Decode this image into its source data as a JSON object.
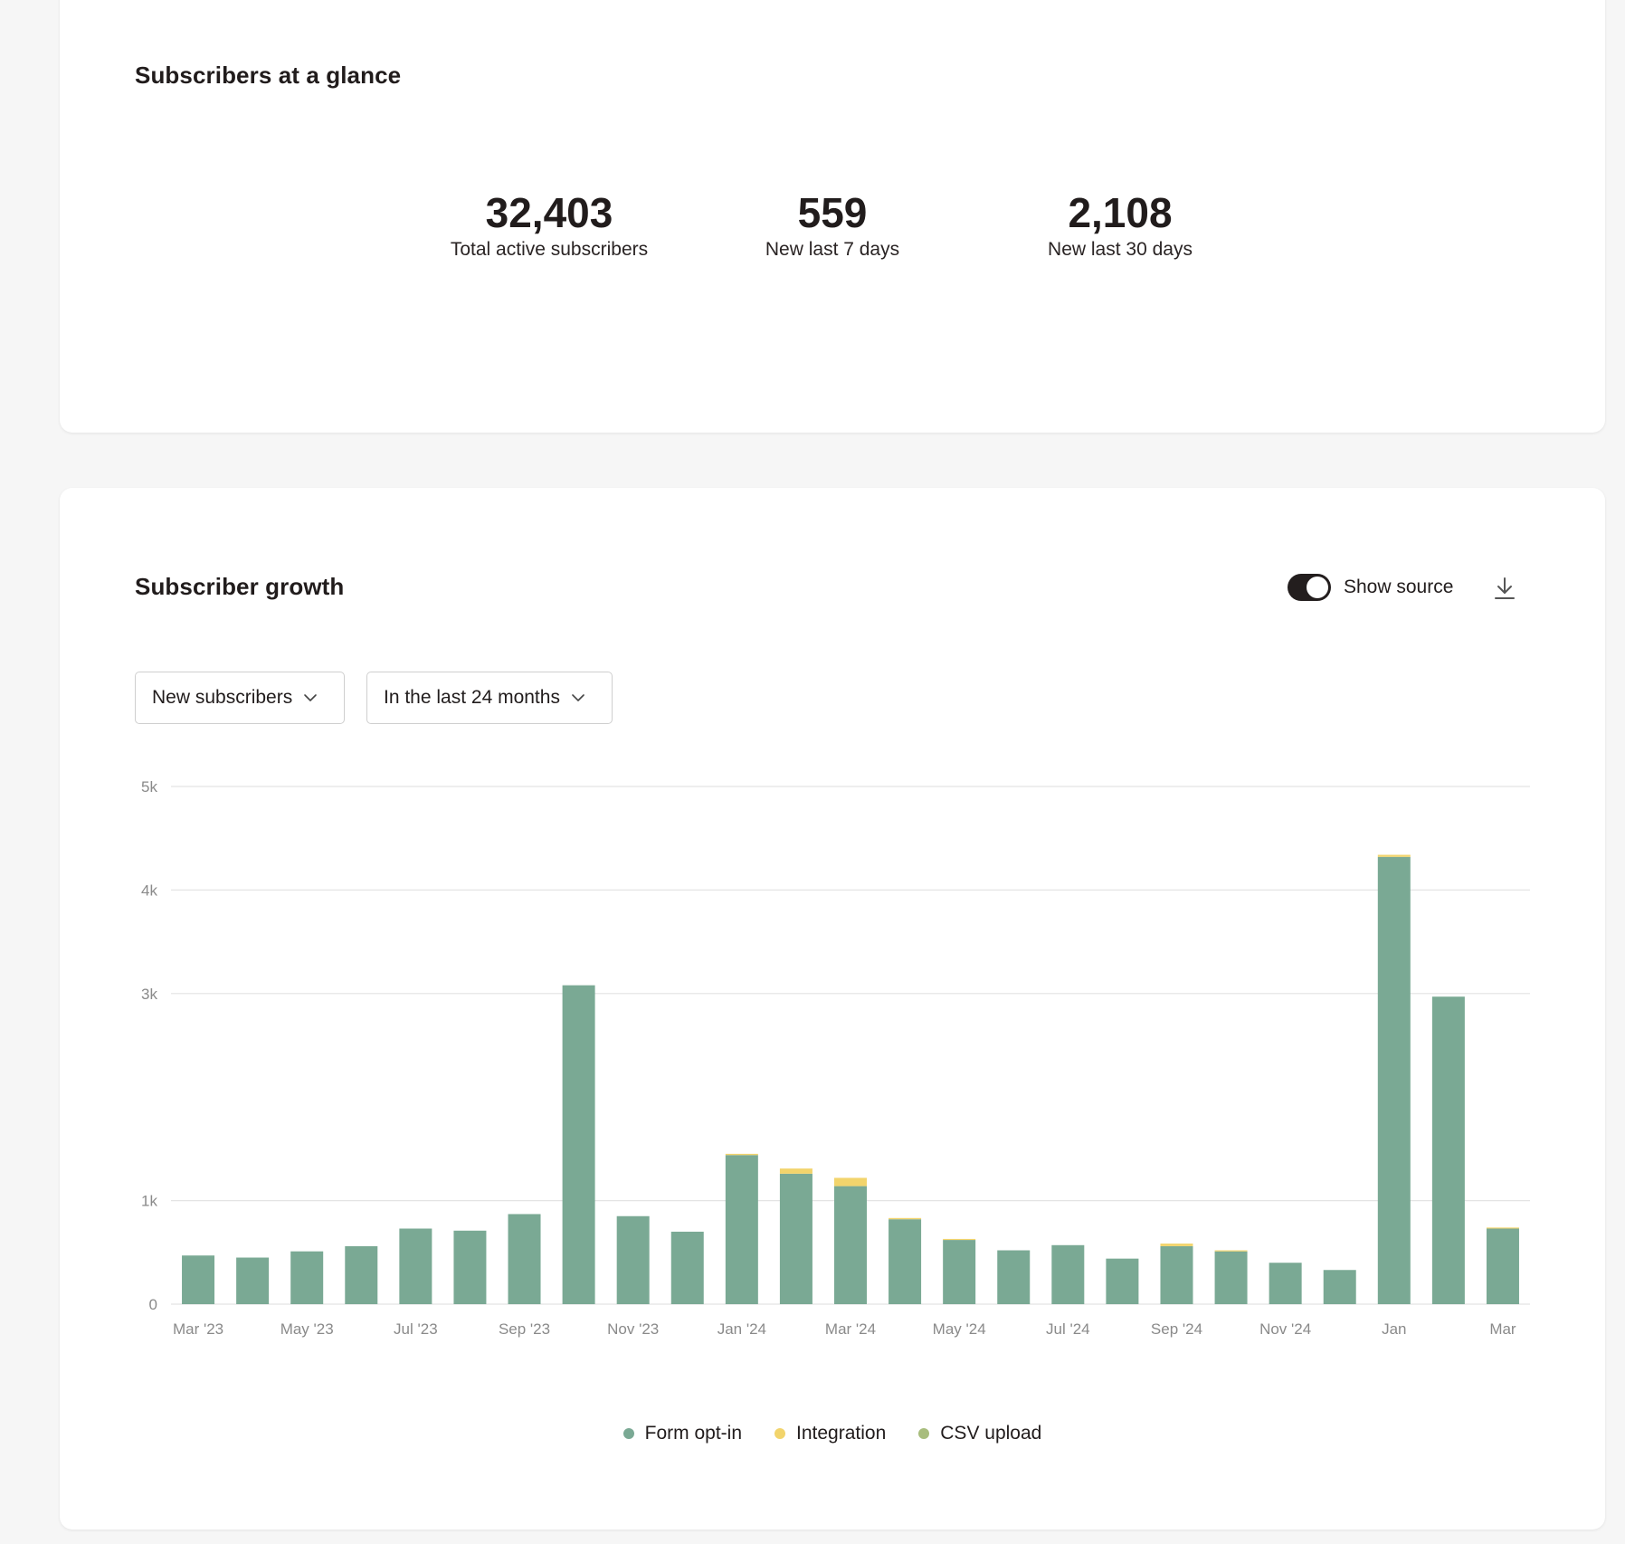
{
  "glance": {
    "title": "Subscribers at a glance",
    "stats": [
      {
        "value": "32,403",
        "label": "Total active subscribers"
      },
      {
        "value": "559",
        "label": "New last 7 days"
      },
      {
        "value": "2,108",
        "label": "New last 30 days"
      }
    ]
  },
  "growth": {
    "title": "Subscriber growth",
    "toggle_label": "Show source",
    "toggle_on": true,
    "download_icon": "download-icon",
    "metric_select": "New subscribers",
    "range_select": "In the last 24 months"
  },
  "colors": {
    "form_optin": "#7aa994",
    "integration": "#f2d46c",
    "csv_upload": "#a8bd7d",
    "grid": "#e4e4e4",
    "axis_text": "#8a8a8a"
  },
  "chart_data": {
    "type": "bar",
    "stacked": true,
    "title": "Subscriber growth",
    "ylim": [
      0,
      5000
    ],
    "y_ticks": [
      0,
      1000,
      3000,
      4000,
      5000
    ],
    "y_tick_labels": [
      "0",
      "1k",
      "3k",
      "4k",
      "5k"
    ],
    "x_tick_labels": [
      "Mar '23",
      "May '23",
      "Jul '23",
      "Sep '23",
      "Nov '23",
      "Jan '24",
      "Mar '24",
      "May '24",
      "Jul '24",
      "Sep '24",
      "Nov '24",
      "Jan",
      "Mar"
    ],
    "categories": [
      "Mar '23",
      "Apr '23",
      "May '23",
      "Jun '23",
      "Jul '23",
      "Aug '23",
      "Sep '23",
      "Oct '23",
      "Nov '23",
      "Dec '23",
      "Jan '24",
      "Feb '24",
      "Mar '24",
      "Apr '24",
      "May '24",
      "Jun '24",
      "Jul '24",
      "Aug '24",
      "Sep '24",
      "Oct '24",
      "Nov '24",
      "Dec '24",
      "Jan",
      "Feb",
      "Mar"
    ],
    "series": [
      {
        "name": "Form opt-in",
        "values": [
          470,
          450,
          510,
          560,
          730,
          710,
          870,
          3080,
          850,
          700,
          1440,
          1260,
          1140,
          820,
          620,
          520,
          570,
          440,
          560,
          510,
          400,
          330,
          4320,
          2970,
          730
        ]
      },
      {
        "name": "Integration",
        "values": [
          0,
          0,
          0,
          0,
          0,
          0,
          0,
          0,
          0,
          0,
          12,
          50,
          80,
          12,
          10,
          0,
          0,
          0,
          25,
          10,
          0,
          0,
          20,
          0,
          10
        ]
      },
      {
        "name": "CSV upload",
        "values": [
          0,
          0,
          0,
          0,
          0,
          0,
          0,
          0,
          0,
          0,
          0,
          0,
          0,
          0,
          0,
          0,
          0,
          0,
          0,
          0,
          0,
          0,
          0,
          0,
          0
        ]
      }
    ],
    "legend": [
      "Form opt-in",
      "Integration",
      "CSV upload"
    ]
  }
}
